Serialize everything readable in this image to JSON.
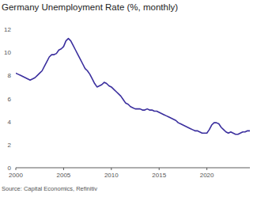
{
  "chart_data": {
    "type": "line",
    "title": "Germany Unemployment Rate (%, monthly)",
    "source": "Source: Capital Economics, Refinitiv",
    "color": "#3b2f9e",
    "grid": false,
    "x": [
      2000,
      2000.25,
      2000.5,
      2000.75,
      2001,
      2001.25,
      2001.5,
      2001.75,
      2002,
      2002.25,
      2002.5,
      2002.75,
      2003,
      2003.25,
      2003.5,
      2003.75,
      2004,
      2004.25,
      2004.5,
      2004.75,
      2005,
      2005.25,
      2005.5,
      2005.75,
      2006,
      2006.25,
      2006.5,
      2006.75,
      2007,
      2007.25,
      2007.5,
      2007.75,
      2008,
      2008.25,
      2008.5,
      2008.75,
      2009,
      2009.25,
      2009.5,
      2009.75,
      2010,
      2010.25,
      2010.5,
      2010.75,
      2011,
      2011.25,
      2011.5,
      2011.75,
      2012,
      2012.25,
      2012.5,
      2012.75,
      2013,
      2013.25,
      2013.5,
      2013.75,
      2014,
      2014.25,
      2014.5,
      2014.75,
      2015,
      2015.25,
      2015.5,
      2015.75,
      2016,
      2016.25,
      2016.5,
      2016.75,
      2017,
      2017.25,
      2017.5,
      2017.75,
      2018,
      2018.25,
      2018.5,
      2018.75,
      2019,
      2019.25,
      2019.5,
      2019.75,
      2020,
      2020.25,
      2020.5,
      2020.75,
      2021,
      2021.25,
      2021.5,
      2021.75,
      2022,
      2022.25,
      2022.5,
      2022.75,
      2023,
      2023.25,
      2023.5,
      2023.75,
      2024,
      2024.25,
      2024.5
    ],
    "values": [
      8.2,
      8.1,
      8.0,
      7.9,
      7.8,
      7.7,
      7.6,
      7.7,
      7.8,
      8.0,
      8.2,
      8.4,
      8.8,
      9.2,
      9.6,
      9.8,
      9.8,
      9.9,
      10.2,
      10.3,
      10.5,
      11.0,
      11.2,
      11.0,
      10.6,
      10.2,
      9.8,
      9.4,
      9.0,
      8.6,
      8.4,
      8.1,
      7.7,
      7.3,
      7.0,
      7.1,
      7.2,
      7.4,
      7.3,
      7.1,
      7.0,
      6.8,
      6.6,
      6.4,
      6.2,
      5.9,
      5.6,
      5.5,
      5.3,
      5.2,
      5.1,
      5.1,
      5.1,
      5.0,
      5.0,
      5.1,
      5.0,
      5.0,
      4.9,
      4.9,
      4.8,
      4.7,
      4.6,
      4.5,
      4.4,
      4.3,
      4.2,
      4.1,
      3.9,
      3.8,
      3.7,
      3.6,
      3.5,
      3.4,
      3.3,
      3.2,
      3.2,
      3.1,
      3.0,
      3.0,
      3.0,
      3.3,
      3.7,
      3.9,
      3.9,
      3.8,
      3.5,
      3.3,
      3.1,
      3.0,
      3.1,
      3.0,
      2.9,
      2.9,
      3.0,
      3.1,
      3.1,
      3.2,
      3.2
    ],
    "xlim": [
      2000,
      2024.5
    ],
    "xticks": [
      2000,
      2005,
      2010,
      2015,
      2020
    ],
    "ylim": [
      0,
      12
    ],
    "yticks": [
      0,
      2,
      4,
      6,
      8,
      10,
      12
    ]
  }
}
